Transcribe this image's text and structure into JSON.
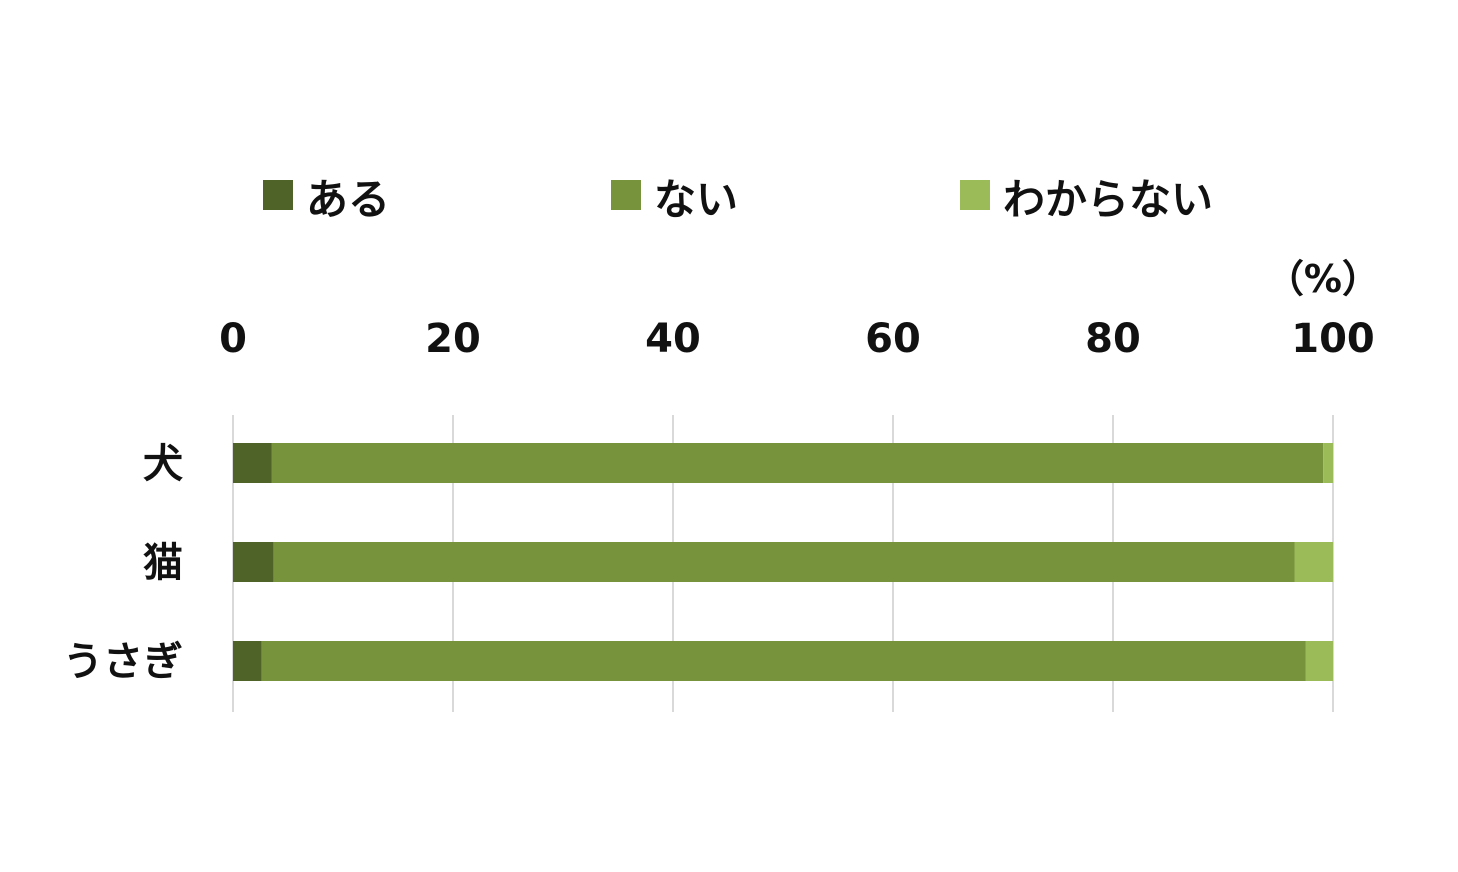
{
  "chart_data": {
    "type": "bar",
    "orientation": "horizontal",
    "stacked": true,
    "categories": [
      "犬",
      "猫",
      "うさぎ"
    ],
    "series": [
      {
        "name": "ある",
        "color": "#4f6228",
        "values": [
          3.5,
          3.7,
          2.6
        ]
      },
      {
        "name": "ない",
        "color": "#77933c",
        "values": [
          95.6,
          92.8,
          94.9
        ]
      },
      {
        "name": "わからない",
        "color": "#9bbb59",
        "values": [
          0.9,
          3.5,
          2.5
        ]
      }
    ],
    "xlim": [
      0,
      100
    ],
    "xticks": [
      0,
      20,
      40,
      60,
      80,
      100
    ],
    "unit_label": "（%）",
    "xaxis_position": "top",
    "grid": true,
    "legend_position": "top"
  }
}
